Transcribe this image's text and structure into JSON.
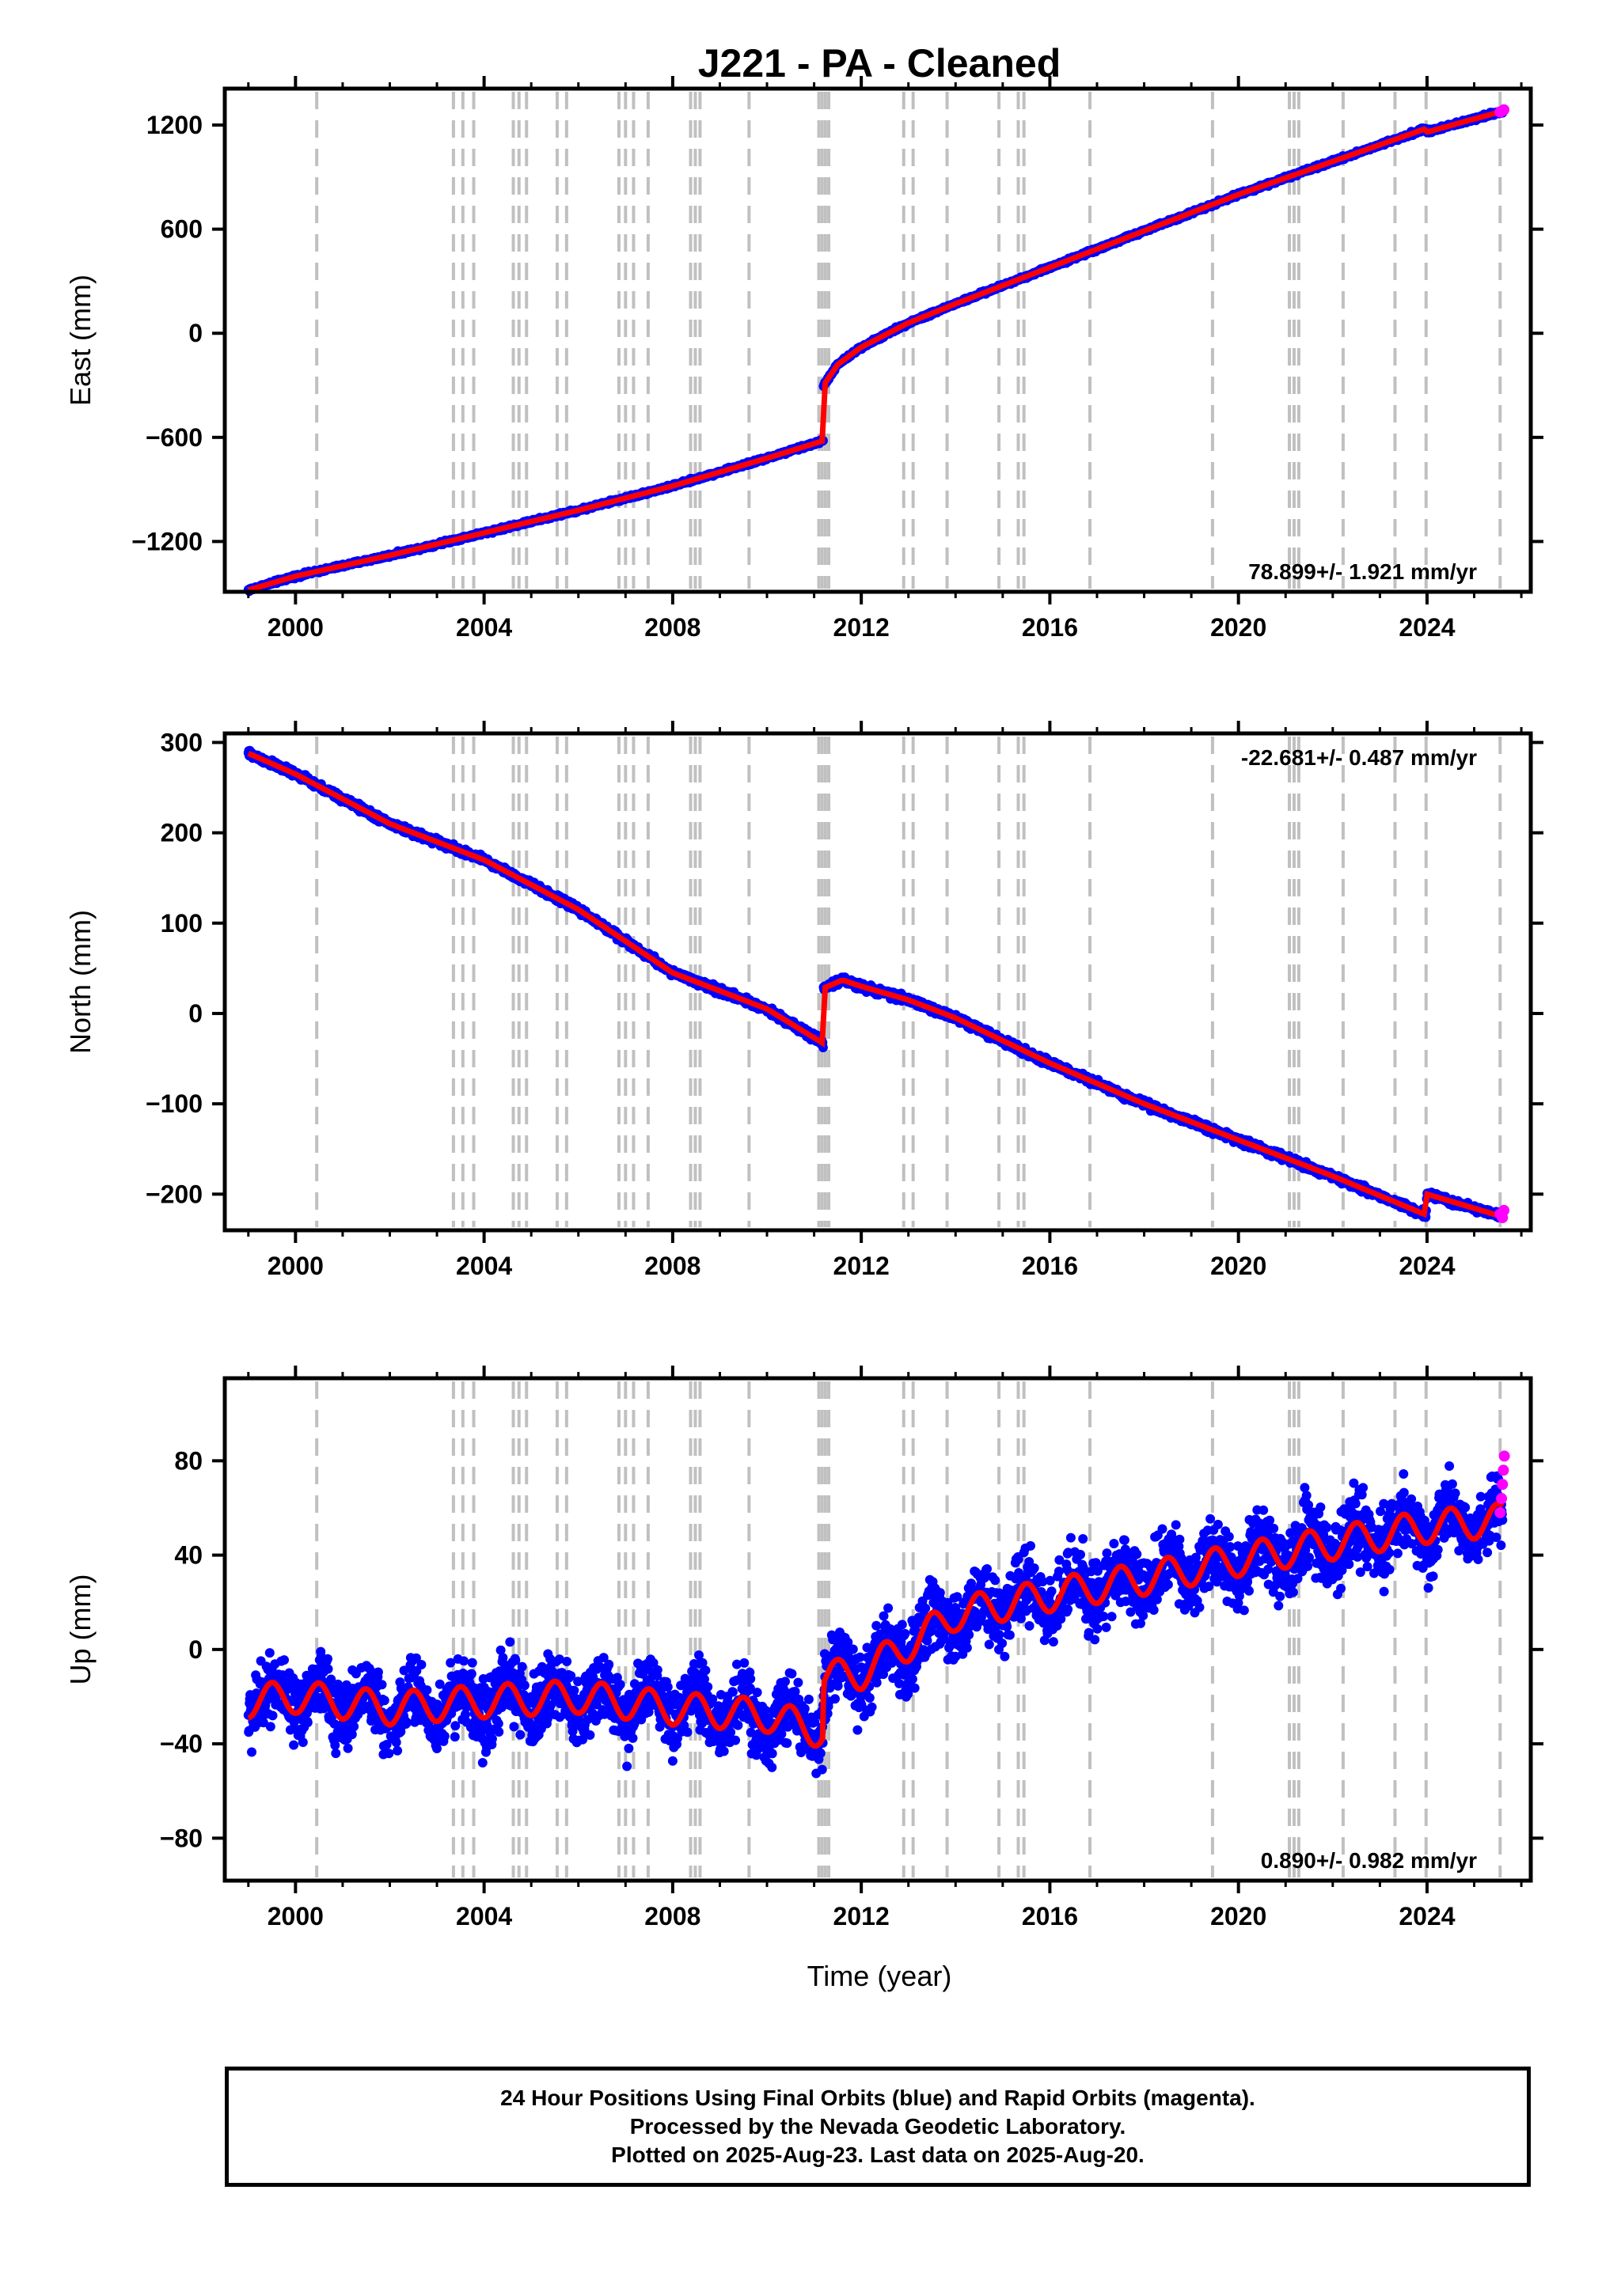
{
  "title": "J221  - PA - Cleaned",
  "xlabel": "Time (year)",
  "footer": {
    "line1": "24 Hour Positions Using Final Orbits (blue) and Rapid Orbits (magenta).",
    "line2": "Processed by the Nevada Geodetic Laboratory.",
    "line3": "Plotted on 2025-Aug-23. Last data on 2025-Aug-20."
  },
  "colors": {
    "final": "#0000ff",
    "rapid": "#ff00ff",
    "model": "#ff0000",
    "event_line": "#c0c0c0",
    "axis": "#000000"
  },
  "chart_data": [
    {
      "type": "scatter",
      "component": "East",
      "ylabel": "East (mm)",
      "ylim": [
        -1490,
        1410
      ],
      "xlim": [
        1998.5,
        2026.2
      ],
      "yticks": [
        -1200,
        -600,
        0,
        600,
        1200
      ],
      "xticks": [
        2000,
        2004,
        2008,
        2012,
        2016,
        2020,
        2024
      ],
      "rate": "78.899+/- 1.921 mm/yr",
      "rate_position": "bottom-right",
      "series": [
        {
          "name": "Final Orbits (blue)",
          "x": [
            1999.0,
            2000.0,
            2002.0,
            2004.0,
            2006.0,
            2008.0,
            2010.0,
            2011.19,
            2011.2,
            2011.5,
            2012.0,
            2013.0,
            2014.0,
            2016.0,
            2018.0,
            2020.0,
            2022.0,
            2023.98,
            2024.0,
            2025.6
          ],
          "values": [
            -1480,
            -1400,
            -1280,
            -1150,
            -1020,
            -880,
            -720,
            -620,
            -300,
            -180,
            -80,
            60,
            170,
            380,
            590,
            800,
            990,
            1180,
            1160,
            1280
          ]
        },
        {
          "name": "Rapid Orbits (magenta)",
          "x": [
            2025.55,
            2025.6,
            2025.63
          ],
          "values": [
            1275,
            1282,
            1288
          ]
        }
      ]
    },
    {
      "type": "scatter",
      "component": "North",
      "ylabel": "North (mm)",
      "ylim": [
        -240,
        310
      ],
      "xlim": [
        1998.5,
        2026.2
      ],
      "yticks": [
        -200,
        -100,
        0,
        100,
        200,
        300
      ],
      "xticks": [
        2000,
        2004,
        2008,
        2012,
        2016,
        2020,
        2024
      ],
      "rate": "-22.681+/- 0.487 mm/yr",
      "rate_position": "top-right",
      "series": [
        {
          "name": "Final Orbits (blue)",
          "x": [
            1999.0,
            2000.0,
            2002.0,
            2004.0,
            2006.0,
            2008.0,
            2010.0,
            2011.19,
            2011.2,
            2011.6,
            2012.0,
            2013.0,
            2014.0,
            2016.0,
            2018.0,
            2020.0,
            2022.0,
            2023.98,
            2024.0,
            2025.6
          ],
          "values": [
            288,
            265,
            210,
            170,
            115,
            45,
            5,
            -33,
            28,
            37,
            30,
            15,
            -5,
            -55,
            -100,
            -140,
            -180,
            -223,
            -200,
            -225
          ]
        },
        {
          "name": "Rapid Orbits (magenta)",
          "x": [
            2025.55,
            2025.6,
            2025.63
          ],
          "values": [
            -222,
            -226,
            -218
          ]
        }
      ]
    },
    {
      "type": "scatter",
      "component": "Up",
      "ylabel": "Up (mm)",
      "ylim": [
        -98,
        115
      ],
      "xlim": [
        1998.5,
        2026.2
      ],
      "yticks": [
        -80,
        -40,
        0,
        40,
        80
      ],
      "xticks": [
        2000,
        2004,
        2008,
        2012,
        2016,
        2020,
        2024
      ],
      "rate": "0.890+/- 0.982 mm/yr",
      "rate_position": "bottom-right",
      "series": [
        {
          "name": "Final Orbits (blue)",
          "x": [
            1999.0,
            2000.0,
            2002.0,
            2004.0,
            2006.0,
            2008.0,
            2010.0,
            2011.19,
            2011.2,
            2012.0,
            2013.0,
            2014.0,
            2016.0,
            2018.0,
            2020.0,
            2022.0,
            2024.0,
            2025.6
          ],
          "values": [
            -22,
            -20,
            -25,
            -22,
            -20,
            -25,
            -28,
            -35,
            -12,
            -10,
            2,
            15,
            23,
            30,
            38,
            45,
            52,
            55
          ]
        },
        {
          "name": "Rapid Orbits (magenta)",
          "x": [
            2025.55,
            2025.58,
            2025.6,
            2025.62,
            2025.64
          ],
          "values": [
            58,
            64,
            70,
            76,
            82
          ]
        }
      ]
    }
  ],
  "event_years": [
    2000.45,
    2003.35,
    2003.55,
    2003.78,
    2004.62,
    2004.74,
    2004.9,
    2005.55,
    2005.75,
    2006.86,
    2007.0,
    2007.17,
    2007.48,
    2008.38,
    2008.48,
    2008.58,
    2009.62,
    2011.1,
    2011.17,
    2011.24,
    2011.31,
    2012.9,
    2013.1,
    2013.82,
    2014.92,
    2015.33,
    2015.45,
    2016.85,
    2019.45,
    2021.08,
    2021.18,
    2021.28,
    2022.22,
    2023.32,
    2023.98,
    2025.55
  ]
}
